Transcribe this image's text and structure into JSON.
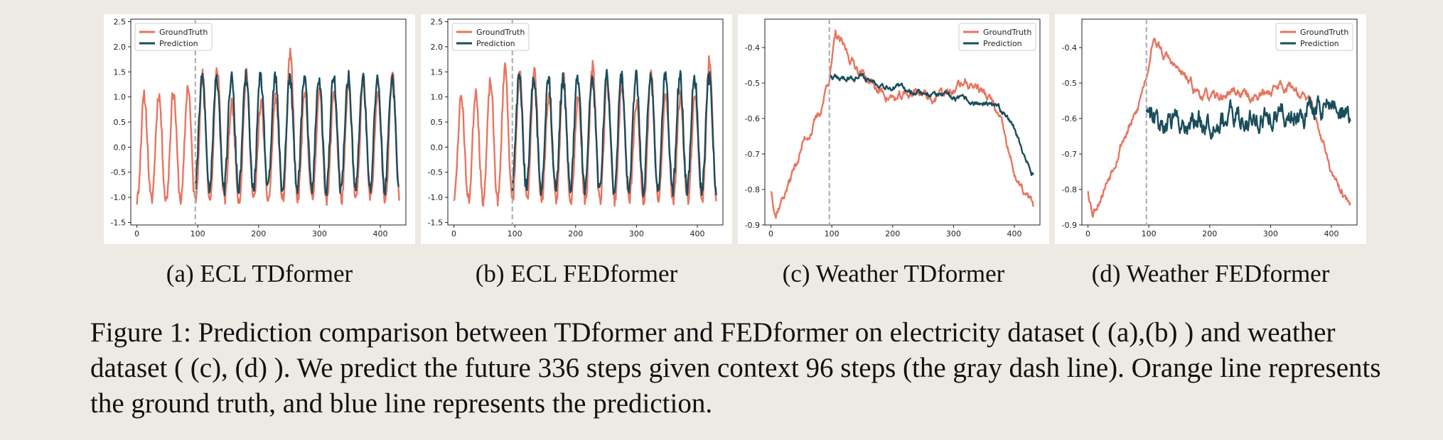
{
  "colors": {
    "ground_truth": "#e87560",
    "prediction": "#1a4d5c",
    "context_line": "#b0b0b0"
  },
  "subcaptions": [
    "(a) ECL TDformer",
    "(b) ECL FEDformer",
    "(c) Weather TDformer",
    "(d) Weather FEDformer"
  ],
  "figure_caption": "Figure 1: Prediction comparison between TDformer and FEDformer on electricity dataset ( (a),(b) ) and weather dataset ( (c), (d) ). We predict the future 336 steps given context 96 steps (the gray dash line). Orange line represents the ground truth, and blue line represents the prediction.",
  "chart_data": [
    {
      "type": "line",
      "kind": "ecl",
      "seed": 11,
      "legend_position": "top-left",
      "xlim": [
        -10,
        442
      ],
      "ylim": [
        -1.55,
        2.55
      ],
      "xticks": [
        0,
        100,
        200,
        300,
        400
      ],
      "yticks": [
        -1.5,
        -1.0,
        -0.5,
        0.0,
        0.5,
        1.0,
        1.5,
        2.0,
        2.5
      ],
      "context_end": 96,
      "total_steps": 432,
      "series": [
        {
          "name": "GroundTruth",
          "key": "truth"
        },
        {
          "name": "Prediction",
          "key": "prediction"
        }
      ]
    },
    {
      "type": "line",
      "kind": "ecl",
      "seed": 23,
      "legend_position": "top-left",
      "xlim": [
        -10,
        442
      ],
      "ylim": [
        -1.55,
        2.55
      ],
      "xticks": [
        0,
        100,
        200,
        300,
        400
      ],
      "yticks": [
        -1.5,
        -1.0,
        -0.5,
        0.0,
        0.5,
        1.0,
        1.5,
        2.0,
        2.5
      ],
      "context_end": 96,
      "total_steps": 432,
      "series": [
        {
          "name": "GroundTruth",
          "key": "truth"
        },
        {
          "name": "Prediction",
          "key": "prediction"
        }
      ]
    },
    {
      "type": "line",
      "kind": "weather",
      "seed": 37,
      "pred_style": "smooth",
      "legend_position": "top-right",
      "xlim": [
        -10,
        442
      ],
      "ylim": [
        -0.9,
        -0.32
      ],
      "xticks": [
        0,
        100,
        200,
        300,
        400
      ],
      "yticks": [
        -0.9,
        -0.8,
        -0.7,
        -0.6,
        -0.5,
        -0.4
      ],
      "context_end": 96,
      "total_steps": 432,
      "series": [
        {
          "name": "GroundTruth",
          "key": "truth"
        },
        {
          "name": "Prediction",
          "key": "prediction"
        }
      ]
    },
    {
      "type": "line",
      "kind": "weather",
      "seed": 53,
      "pred_style": "noisy",
      "legend_position": "top-right",
      "xlim": [
        -10,
        442
      ],
      "ylim": [
        -0.9,
        -0.32
      ],
      "xticks": [
        0,
        100,
        200,
        300,
        400
      ],
      "yticks": [
        -0.9,
        -0.8,
        -0.7,
        -0.6,
        -0.5,
        -0.4
      ],
      "context_end": 96,
      "total_steps": 432,
      "series": [
        {
          "name": "GroundTruth",
          "key": "truth"
        },
        {
          "name": "Prediction",
          "key": "prediction"
        }
      ]
    }
  ]
}
